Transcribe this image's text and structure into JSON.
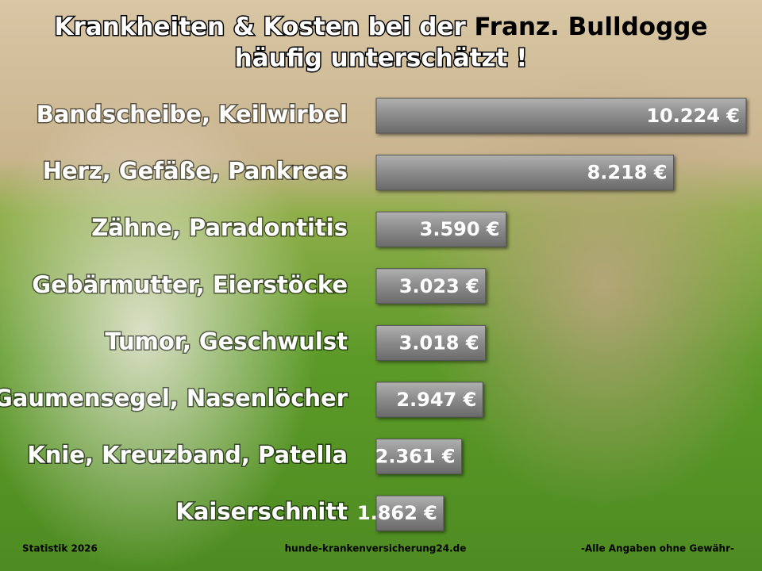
{
  "chart_data": {
    "type": "bar",
    "orientation": "horizontal",
    "title": "Krankheiten & Kosten bei der",
    "title_highlight": "Franz. Bulldogge",
    "subtitle": "häufig unterschätzt !",
    "categories": [
      "Bandscheibe, Keilwirbel",
      "Herz, Gefäße, Pankreas",
      "Zähne, Paradontitis",
      "Gebärmutter, Eierstöcke",
      "Tumor, Geschwulst",
      "Gaumensegel, Nasenlöcher",
      "Knie, Kreuzband, Patella",
      "Kaiserschnitt"
    ],
    "values": [
      10224,
      8218,
      3590,
      3023,
      3018,
      2947,
      2361,
      1862
    ],
    "value_labels": [
      "10.224 €",
      "8.218 €",
      "3.590 €",
      "3.023 €",
      "3.018 €",
      "2.947 €",
      "2.361 €",
      "1.862 €"
    ],
    "color": "#8a8a8a"
  },
  "footer": {
    "left": "Statistik 2026",
    "center": "hunde-krankenversicherung24.de",
    "right": "-Alle Angaben ohne Gewähr-"
  }
}
